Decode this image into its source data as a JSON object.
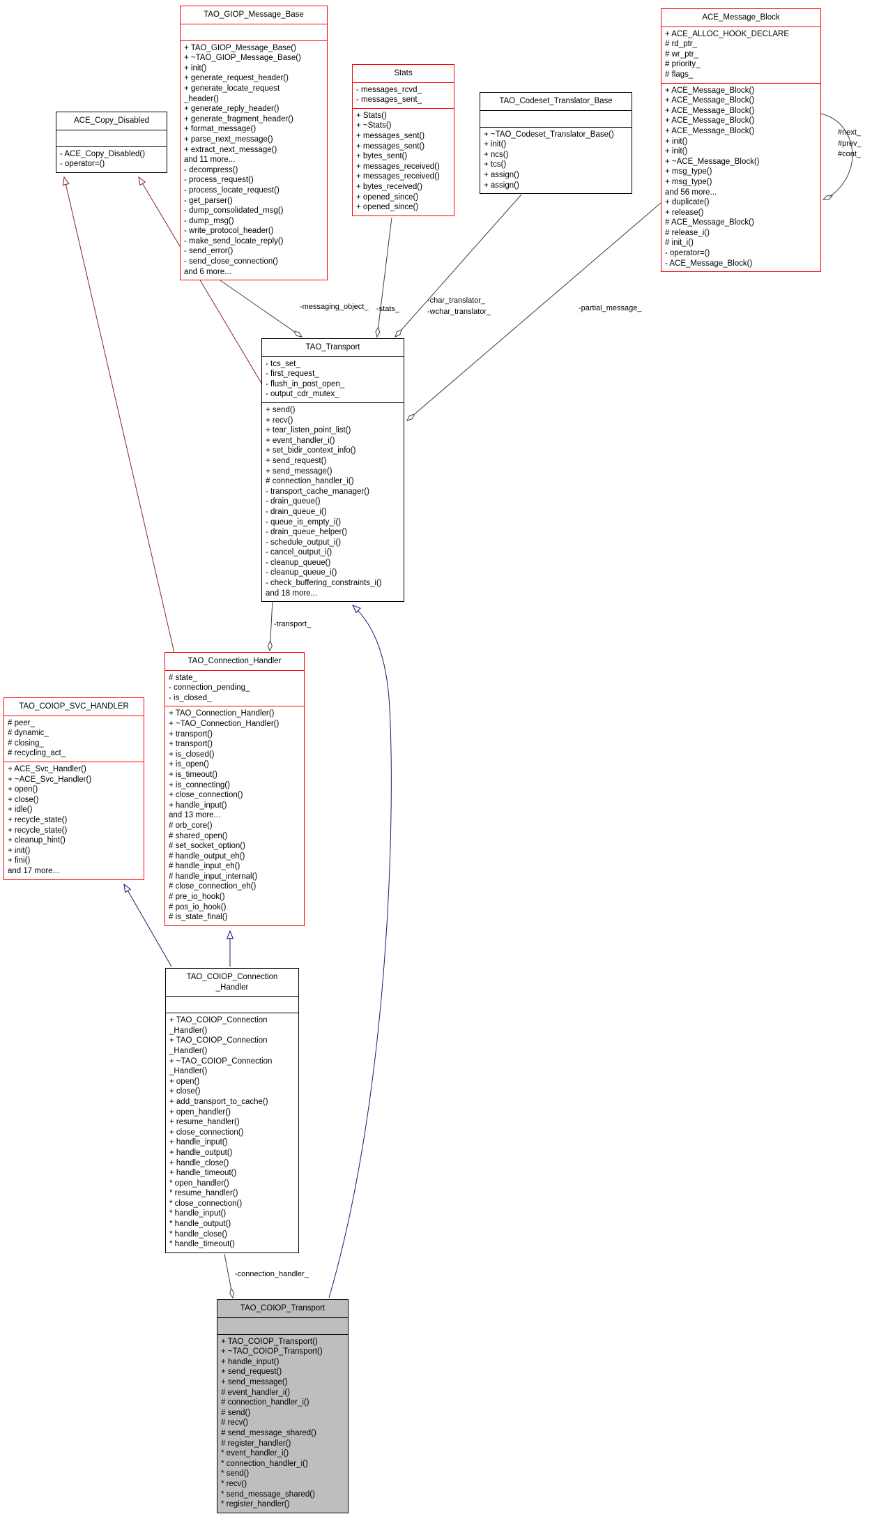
{
  "colors": {
    "red_border": "#ff0000",
    "inherit_private": "#8b2323",
    "inherit_public": "#191970",
    "member_edge": "#3c3c3c",
    "selected_fill": "#bebebe"
  },
  "classes": {
    "giop": {
      "title": "TAO_GIOP_Message_Base",
      "attrs": [],
      "methods": [
        "+ TAO_GIOP_Message_Base()",
        "+ ~TAO_GIOP_Message_Base()",
        "+ init()",
        "+ generate_request_header()",
        "+ generate_locate_request",
        "_header()",
        "+ generate_reply_header()",
        "+ generate_fragment_header()",
        "+ format_message()",
        "+ parse_next_message()",
        "+ extract_next_message()",
        "and 11 more...",
        "- decompress()",
        "- process_request()",
        "- process_locate_request()",
        "- get_parser()",
        "- dump_consolidated_msg()",
        "- dump_msg()",
        "- write_protocol_header()",
        "- make_send_locate_reply()",
        "- send_error()",
        "- send_close_connection()",
        "and 6 more..."
      ]
    },
    "copy_disabled": {
      "title": "ACE_Copy_Disabled",
      "attrs": [],
      "methods": [
        "- ACE_Copy_Disabled()",
        "- operator=()"
      ]
    },
    "stats": {
      "title": "Stats",
      "attrs": [
        "- messages_rcvd_",
        "- messages_sent_"
      ],
      "methods": [
        "+ Stats()",
        "+ ~Stats()",
        "+ messages_sent()",
        "+ messages_sent()",
        "+ bytes_sent()",
        "+ messages_received()",
        "+ messages_received()",
        "+ bytes_received()",
        "+ opened_since()",
        "+ opened_since()"
      ]
    },
    "codeset": {
      "title": "TAO_Codeset_Translator_Base",
      "attrs": [],
      "methods": [
        "+ ~TAO_Codeset_Translator_Base()",
        "+ init()",
        "+ ncs()",
        "+ tcs()",
        "+ assign()",
        "+ assign()"
      ]
    },
    "msg_block": {
      "title": "ACE_Message_Block",
      "attrs": [
        "+ ACE_ALLOC_HOOK_DECLARE",
        "# rd_ptr_",
        "# wr_ptr_",
        "# priority_",
        "# flags_"
      ],
      "methods": [
        "+ ACE_Message_Block()",
        "+ ACE_Message_Block()",
        "+ ACE_Message_Block()",
        "+ ACE_Message_Block()",
        "+ ACE_Message_Block()",
        "+ init()",
        "+ init()",
        "+ ~ACE_Message_Block()",
        "+ msg_type()",
        "+ msg_type()",
        "and 56 more...",
        "+ duplicate()",
        "+ release()",
        "# ACE_Message_Block()",
        "# release_i()",
        "# init_i()",
        "- operator=()",
        "- ACE_Message_Block()"
      ]
    },
    "transport": {
      "title": "TAO_Transport",
      "attrs": [
        "- tcs_set_",
        "- first_request_",
        "- flush_in_post_open_",
        "- output_cdr_mutex_"
      ],
      "methods": [
        "+ send()",
        "+ recv()",
        "+ tear_listen_point_list()",
        "+ event_handler_i()",
        "+ set_bidir_context_info()",
        "+ send_request()",
        "+ send_message()",
        "# connection_handler_i()",
        "- transport_cache_manager()",
        "- drain_queue()",
        "- drain_queue_i()",
        "- queue_is_empty_i()",
        "- drain_queue_helper()",
        "- schedule_output_i()",
        "- cancel_output_i()",
        "- cleanup_queue()",
        "- cleanup_queue_i()",
        "- check_buffering_constraints_i()",
        "and 18 more..."
      ]
    },
    "conn_handler": {
      "title": "TAO_Connection_Handler",
      "attrs": [
        "# state_",
        "- connection_pending_",
        "- is_closed_"
      ],
      "methods": [
        "+ TAO_Connection_Handler()",
        "+ ~TAO_Connection_Handler()",
        "+ transport()",
        "+ transport()",
        "+ is_closed()",
        "+ is_open()",
        "+ is_timeout()",
        "+ is_connecting()",
        "+ close_connection()",
        "+ handle_input()",
        "and 13 more...",
        "# orb_core()",
        "# shared_open()",
        "# set_socket_option()",
        "# handle_output_eh()",
        "# handle_input_eh()",
        "# handle_input_internal()",
        "# close_connection_eh()",
        "# pre_io_hook()",
        "# pos_io_hook()",
        "# is_state_final()"
      ]
    },
    "svc_handler": {
      "title": "TAO_COIOP_SVC_HANDLER",
      "attrs": [
        "# peer_",
        "# dynamic_",
        "# closing_",
        "# recycling_act_"
      ],
      "methods": [
        "+ ACE_Svc_Handler()",
        "+ ~ACE_Svc_Handler()",
        "+ open()",
        "+ close()",
        "+ idle()",
        "+ recycle_state()",
        "+ recycle_state()",
        "+ cleanup_hint()",
        "+ init()",
        "+ fini()",
        "and 17 more..."
      ]
    },
    "coiop_ch": {
      "title": "TAO_COIOP_Connection\n_Handler",
      "attrs": [],
      "methods": [
        "+ TAO_COIOP_Connection",
        "_Handler()",
        "+ TAO_COIOP_Connection",
        "_Handler()",
        "+ ~TAO_COIOP_Connection",
        "_Handler()",
        "+ open()",
        "+ close()",
        "+ add_transport_to_cache()",
        "+ open_handler()",
        "+ resume_handler()",
        "+ close_connection()",
        "+ handle_input()",
        "+ handle_output()",
        "+ handle_close()",
        "+ handle_timeout()",
        "* open_handler()",
        "* resume_handler()",
        "* close_connection()",
        "* handle_input()",
        "* handle_output()",
        "* handle_close()",
        "* handle_timeout()"
      ]
    },
    "coiop_transport": {
      "title": "TAO_COIOP_Transport",
      "attrs": [],
      "methods": [
        "+ TAO_COIOP_Transport()",
        "+ ~TAO_COIOP_Transport()",
        "+ handle_input()",
        "+ send_request()",
        "+ send_message()",
        "# event_handler_i()",
        "# connection_handler_i()",
        "# send()",
        "# recv()",
        "# send_message_shared()",
        "# register_handler()",
        "* event_handler_i()",
        "* connection_handler_i()",
        "* send()",
        "* recv()",
        "* send_message_shared()",
        "* register_handler()"
      ]
    }
  },
  "edge_labels": {
    "messaging_object": "-messaging_object_",
    "stats": "-stats_",
    "translators": "-char_translator_\n-wchar_translator_",
    "partial_message": "-partial_message_",
    "transport": "-transport_",
    "connection_handler": "-connection_handler_",
    "next_prev_cont": "#next_\n#prev_\n#cont_"
  }
}
